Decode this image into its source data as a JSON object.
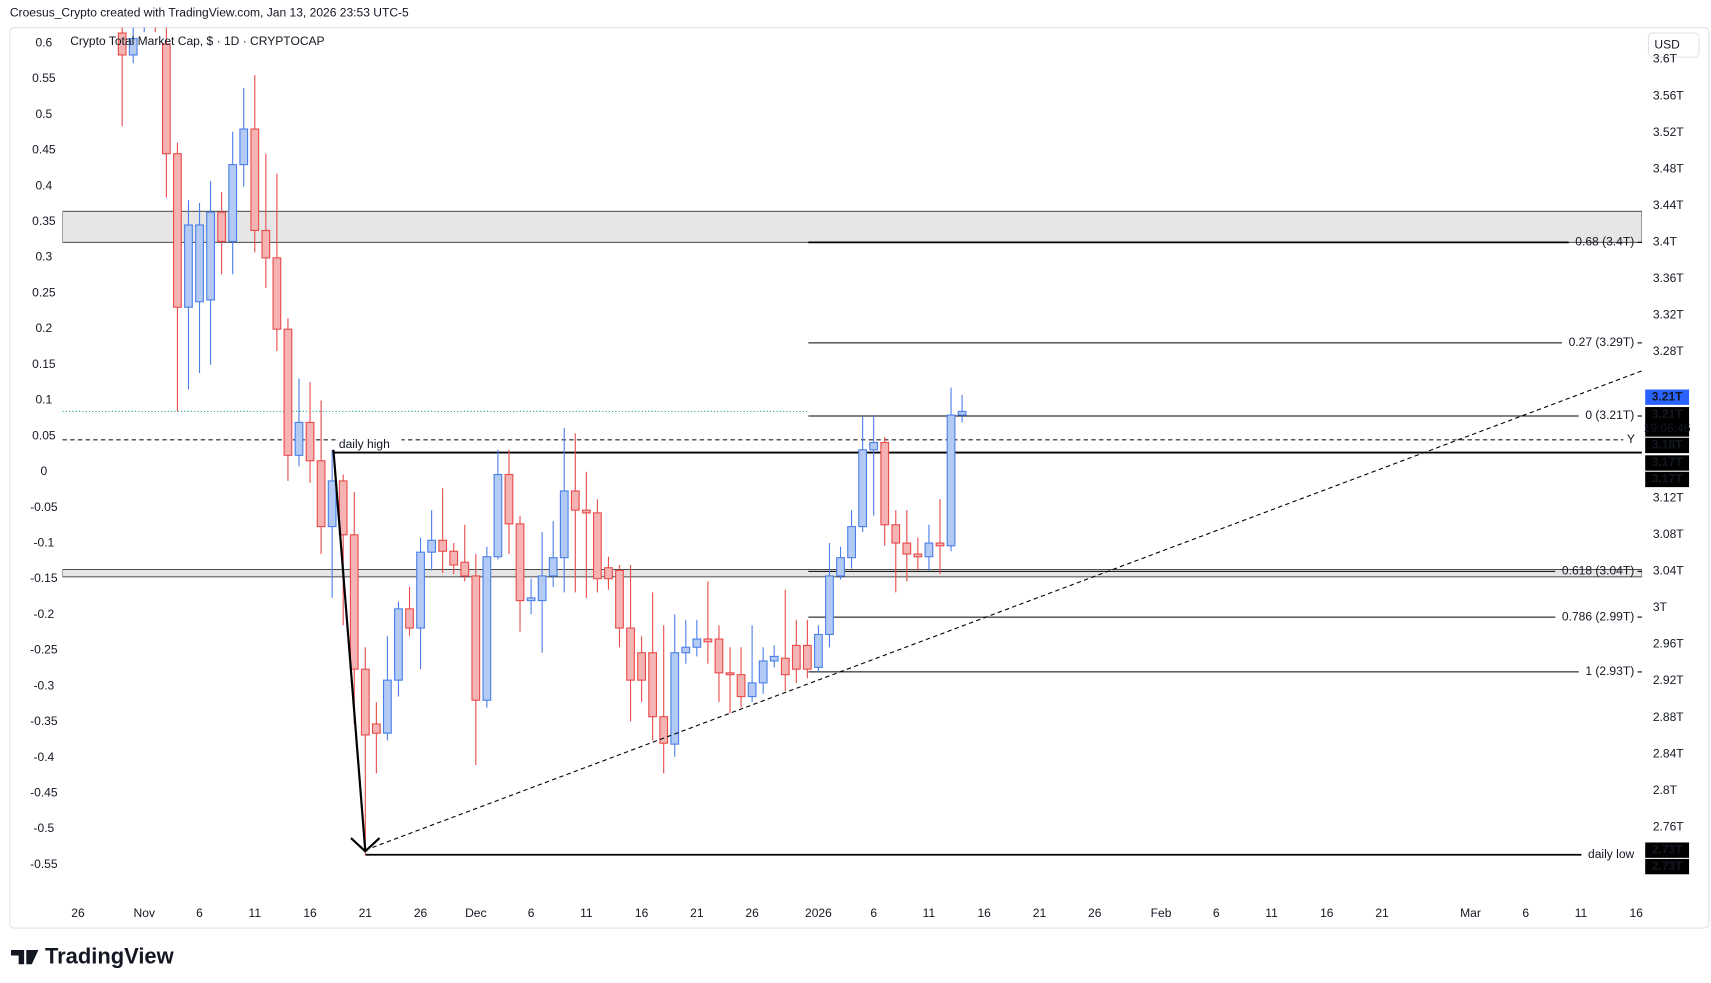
{
  "header": {
    "credit": "Croesus_Crypto created with TradingView.com, Jan 13, 2026 23:53 UTC-5",
    "currency": "USD",
    "brand": "TradingView"
  },
  "chart_data": {
    "type": "candlestick",
    "title": "Crypto Total Market Cap, $ · 1D · CRYPTOCAP",
    "up_color": "#4a7ee8",
    "up_fill": "#b3caf5",
    "down_color": "#e84a4a",
    "down_fill": "#f5b3b3",
    "grid": false,
    "x": [
      "2025-10-30",
      "2025-10-31",
      "2025-11-01",
      "2025-11-02",
      "2025-11-03",
      "2025-11-04",
      "2025-11-05",
      "2025-11-06",
      "2025-11-07",
      "2025-11-08",
      "2025-11-09",
      "2025-11-10",
      "2025-11-11",
      "2025-11-12",
      "2025-11-13",
      "2025-11-14",
      "2025-11-15",
      "2025-11-16",
      "2025-11-17",
      "2025-11-18",
      "2025-11-19",
      "2025-11-20",
      "2025-11-21",
      "2025-11-22",
      "2025-11-23",
      "2025-11-24",
      "2025-11-25",
      "2025-11-26",
      "2025-11-27",
      "2025-11-28",
      "2025-11-29",
      "2025-11-30",
      "2025-12-01",
      "2025-12-02",
      "2025-12-03",
      "2025-12-04",
      "2025-12-05",
      "2025-12-06",
      "2025-12-07",
      "2025-12-08",
      "2025-12-09",
      "2025-12-10",
      "2025-12-11",
      "2025-12-12",
      "2025-12-13",
      "2025-12-14",
      "2025-12-15",
      "2025-12-16",
      "2025-12-17",
      "2025-12-18",
      "2025-12-19",
      "2025-12-20",
      "2025-12-21",
      "2025-12-22",
      "2025-12-23",
      "2025-12-24",
      "2025-12-25",
      "2025-12-26",
      "2025-12-27",
      "2025-12-28",
      "2025-12-29",
      "2025-12-30",
      "2025-12-31",
      "2026-01-01",
      "2026-01-02",
      "2026-01-03",
      "2026-01-04",
      "2026-01-05",
      "2026-01-06",
      "2026-01-07",
      "2026-01-08",
      "2026-01-09",
      "2026-01-10",
      "2026-01-11",
      "2026-01-12",
      "2026-01-13",
      "2026-01-14"
    ],
    "open": [
      3.629,
      3.605,
      3.64,
      3.66,
      3.617,
      3.497,
      3.329,
      3.335,
      3.337,
      3.433,
      3.401,
      3.485,
      3.524,
      3.413,
      3.383,
      3.305,
      3.167,
      3.203,
      3.161,
      3.089,
      3.139,
      3.08,
      2.933,
      2.873,
      2.863,
      2.921,
      2.999,
      2.978,
      3.061,
      3.074,
      3.062,
      3.05,
      3.035,
      2.899,
      3.056,
      3.146,
      3.092,
      3.008,
      3.008,
      3.035,
      3.055,
      3.128,
      3.107,
      3.104,
      3.044,
      3.041,
      2.978,
      2.951,
      2.951,
      2.881,
      2.851,
      2.951,
      2.957,
      2.966,
      2.966,
      2.929,
      2.927,
      2.903,
      2.918,
      2.942,
      2.945,
      2.959,
      2.959,
      2.935,
      2.971,
      3.035,
      3.055,
      3.089,
      3.173,
      3.181,
      3.091,
      3.071,
      3.059,
      3.056,
      3.071,
      3.068,
      3.211
    ],
    "high": [
      3.641,
      3.635,
      3.67,
      3.68,
      3.641,
      3.509,
      3.446,
      3.443,
      3.467,
      3.455,
      3.521,
      3.569,
      3.583,
      3.497,
      3.475,
      3.317,
      3.251,
      3.247,
      3.227,
      3.173,
      3.146,
      3.127,
      2.957,
      2.897,
      2.969,
      3.007,
      3.023,
      3.077,
      3.107,
      3.131,
      3.071,
      3.091,
      3.059,
      3.067,
      3.173,
      3.173,
      3.101,
      3.032,
      3.083,
      3.095,
      3.197,
      3.191,
      3.149,
      3.119,
      3.056,
      3.047,
      3.047,
      2.969,
      3.017,
      2.981,
      2.993,
      2.987,
      2.987,
      3.029,
      2.981,
      2.957,
      2.957,
      2.981,
      2.957,
      2.959,
      3.02,
      2.987,
      2.987,
      2.981,
      3.071,
      3.067,
      3.107,
      3.209,
      3.211,
      3.187,
      3.107,
      3.107,
      3.077,
      3.091,
      3.119,
      3.241,
      3.233
    ],
    "low": [
      3.527,
      3.596,
      3.63,
      3.63,
      3.449,
      3.215,
      3.239,
      3.257,
      3.266,
      3.365,
      3.365,
      3.461,
      3.389,
      3.35,
      3.281,
      3.139,
      3.155,
      3.137,
      3.059,
      3.011,
      2.981,
      2.873,
      2.73,
      2.819,
      2.855,
      2.903,
      2.969,
      2.933,
      3.041,
      3.038,
      3.037,
      3.029,
      2.828,
      2.891,
      3.053,
      3.059,
      2.974,
      2.993,
      2.951,
      3.023,
      3.017,
      3.017,
      3.011,
      3.017,
      3.02,
      2.957,
      2.876,
      2.897,
      2.855,
      2.819,
      2.837,
      2.939,
      2.947,
      2.939,
      2.897,
      2.885,
      2.891,
      2.897,
      2.906,
      2.935,
      2.909,
      2.918,
      2.923,
      2.93,
      2.957,
      3.031,
      3.043,
      3.083,
      3.101,
      3.068,
      3.017,
      3.029,
      3.041,
      3.041,
      3.037,
      3.062,
      3.203
    ],
    "close": [
      3.605,
      3.623,
      3.66,
      3.64,
      3.497,
      3.329,
      3.419,
      3.419,
      3.433,
      3.401,
      3.485,
      3.524,
      3.413,
      3.383,
      3.305,
      3.167,
      3.203,
      3.161,
      3.089,
      3.139,
      3.08,
      2.933,
      2.861,
      2.863,
      2.921,
      2.999,
      2.978,
      3.061,
      3.074,
      3.062,
      3.047,
      3.035,
      2.899,
      3.056,
      3.146,
      3.092,
      3.008,
      3.011,
      3.035,
      3.055,
      3.128,
      3.107,
      3.104,
      3.032,
      3.032,
      2.978,
      2.921,
      2.921,
      2.881,
      2.852,
      2.951,
      2.957,
      2.966,
      2.963,
      2.929,
      2.927,
      2.903,
      2.918,
      2.942,
      2.947,
      2.927,
      2.933,
      2.933,
      2.971,
      3.035,
      3.055,
      3.089,
      3.173,
      3.181,
      3.091,
      3.071,
      3.059,
      3.056,
      3.071,
      3.068,
      3.211,
      3.215
    ],
    "xlim": [
      "2025-10-25",
      "2026-03-18"
    ],
    "xticks": [
      {
        "value": "2025-10-26",
        "label": "26"
      },
      {
        "value": "2025-11-01",
        "label": "Nov"
      },
      {
        "value": "2025-11-06",
        "label": "6"
      },
      {
        "value": "2025-11-11",
        "label": "11"
      },
      {
        "value": "2025-11-16",
        "label": "16"
      },
      {
        "value": "2025-11-21",
        "label": "21"
      },
      {
        "value": "2025-11-26",
        "label": "26"
      },
      {
        "value": "2025-12-01",
        "label": "Dec"
      },
      {
        "value": "2025-12-06",
        "label": "6"
      },
      {
        "value": "2025-12-11",
        "label": "11"
      },
      {
        "value": "2025-12-16",
        "label": "16"
      },
      {
        "value": "2025-12-21",
        "label": "21"
      },
      {
        "value": "2025-12-26",
        "label": "26"
      },
      {
        "value": "2026-01-01",
        "label": "2026"
      },
      {
        "value": "2026-01-06",
        "label": "6"
      },
      {
        "value": "2026-01-11",
        "label": "11"
      },
      {
        "value": "2026-01-16",
        "label": "16"
      },
      {
        "value": "2026-01-21",
        "label": "21"
      },
      {
        "value": "2026-01-26",
        "label": "26"
      },
      {
        "value": "2026-02-01",
        "label": "Feb"
      },
      {
        "value": "2026-02-06",
        "label": "6"
      },
      {
        "value": "2026-02-11",
        "label": "11"
      },
      {
        "value": "2026-02-16",
        "label": "16"
      },
      {
        "value": "2026-02-21",
        "label": "21"
      },
      {
        "value": "2026-03-01",
        "label": "Mar"
      },
      {
        "value": "2026-03-06",
        "label": "6"
      },
      {
        "value": "2026-03-11",
        "label": "11"
      },
      {
        "value": "2026-03-16",
        "label": "16"
      }
    ],
    "ylim": [
      2.687,
      3.635
    ],
    "yticks": [
      {
        "value": 3.6,
        "label": "3.6T"
      },
      {
        "value": 3.56,
        "label": "3.56T"
      },
      {
        "value": 3.52,
        "label": "3.52T"
      },
      {
        "value": 3.48,
        "label": "3.48T"
      },
      {
        "value": 3.44,
        "label": "3.44T"
      },
      {
        "value": 3.4,
        "label": "3.4T"
      },
      {
        "value": 3.36,
        "label": "3.36T"
      },
      {
        "value": 3.32,
        "label": "3.32T"
      },
      {
        "value": 3.28,
        "label": "3.28T"
      },
      {
        "value": 3.12,
        "label": "3.12T"
      },
      {
        "value": 3.08,
        "label": "3.08T"
      },
      {
        "value": 3.04,
        "label": "3.04T"
      },
      {
        "value": 3,
        "label": "3T"
      },
      {
        "value": 2.96,
        "label": "2.96T"
      },
      {
        "value": 2.92,
        "label": "2.92T"
      },
      {
        "value": 2.88,
        "label": "2.88T"
      },
      {
        "value": 2.84,
        "label": "2.84T"
      },
      {
        "value": 2.8,
        "label": "2.8T"
      },
      {
        "value": 2.76,
        "label": "2.76T"
      }
    ],
    "y2lim": [
      -0.591,
      0.622
    ],
    "y2ticks": [
      0.6,
      0.55,
      0.5,
      0.45,
      0.4,
      0.35,
      0.3,
      0.25,
      0.2,
      0.15,
      0.1,
      0.05,
      0,
      -0.05,
      -0.1,
      -0.15,
      -0.2,
      -0.25,
      -0.3,
      -0.35,
      -0.4,
      -0.45,
      -0.5,
      -0.55
    ],
    "zones": [
      [
        3.4,
        3.434
      ],
      [
        3.034,
        3.042
      ]
    ],
    "fib_levels": [
      {
        "value": 3.4,
        "label": "0.68 (3.4T)"
      },
      {
        "value": 3.29,
        "label": "0.27 (3.29T)"
      },
      {
        "value": 3.21,
        "label": "0 (3.21T)"
      },
      {
        "value": 3.04,
        "label": "0.618 (3.04T)"
      },
      {
        "value": 2.99,
        "label": "0.786 (2.99T)"
      },
      {
        "value": 2.93,
        "label": "1 (2.93T)"
      }
    ],
    "daily_high": {
      "value": 3.17,
      "label": "daily high"
    },
    "daily_low": {
      "value": 2.73,
      "label": "daily low"
    },
    "y_line": {
      "value": 3.184,
      "label": "Y"
    },
    "price_badges": [
      "3.21T",
      "3.21T",
      "19:06:46",
      "3.18T",
      "3.17T",
      "3.17T",
      "2.73T",
      "2.73T"
    ]
  }
}
